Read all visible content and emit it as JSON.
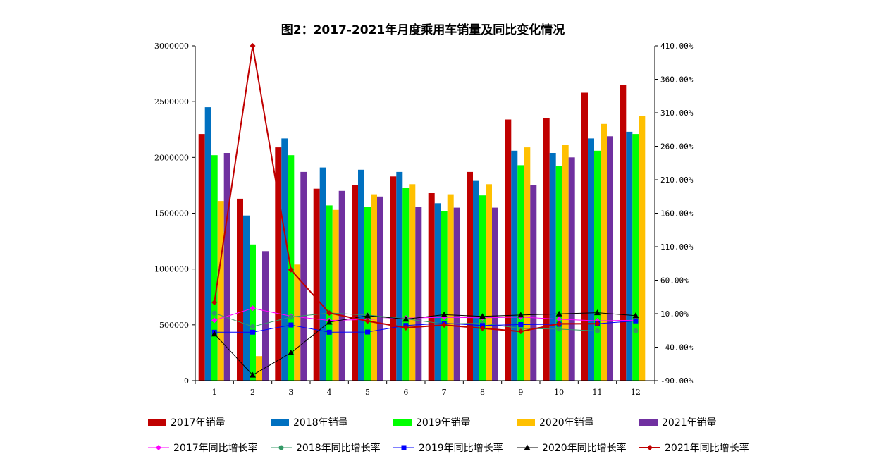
{
  "chart_data": {
    "type": "bar+line",
    "title": "图2：2017-2021年月度乘用车销量及同比变化情况",
    "categories": [
      "1",
      "2",
      "3",
      "4",
      "5",
      "6",
      "7",
      "8",
      "9",
      "10",
      "11",
      "12"
    ],
    "left_axis": {
      "ylim": [
        0,
        3000000
      ],
      "ticks": [
        "0",
        "500000",
        "1000000",
        "1500000",
        "2000000",
        "2500000",
        "3000000"
      ]
    },
    "right_axis": {
      "ylim": [
        -90,
        410
      ],
      "ticks": [
        "-90.00%",
        "-40.00%",
        "10.00%",
        "60.00%",
        "110.00%",
        "160.00%",
        "210.00%",
        "260.00%",
        "310.00%",
        "360.00%",
        "410.00%"
      ]
    },
    "bar_series": [
      {
        "name": "2017年销量",
        "color": "#C00000",
        "values": [
          2210000,
          1630000,
          2090000,
          1720000,
          1750000,
          1830000,
          1680000,
          1870000,
          2340000,
          2350000,
          2580000,
          2650000
        ]
      },
      {
        "name": "2018年销量",
        "color": "#0070C0",
        "values": [
          2450000,
          1480000,
          2170000,
          1910000,
          1890000,
          1870000,
          1590000,
          1790000,
          2060000,
          2040000,
          2170000,
          2230000
        ]
      },
      {
        "name": "2019年销量",
        "color": "#00FF00",
        "values": [
          2020000,
          1220000,
          2020000,
          1570000,
          1560000,
          1730000,
          1520000,
          1660000,
          1930000,
          1920000,
          2060000,
          2210000
        ]
      },
      {
        "name": "2020年销量",
        "color": "#FFC000",
        "values": [
          1610000,
          220000,
          1040000,
          1530000,
          1670000,
          1760000,
          1670000,
          1760000,
          2090000,
          2110000,
          2300000,
          2370000
        ]
      },
      {
        "name": "2021年销量",
        "color": "#7030A0",
        "values": [
          2040000,
          1160000,
          1870000,
          1700000,
          1650000,
          1560000,
          1550000,
          1550000,
          1750000,
          2000000,
          2190000,
          null
        ]
      }
    ],
    "line_series": [
      {
        "name": "2017年同比增长率",
        "color": "#FF00FF",
        "marker": "diamond",
        "values": [
          0.1,
          18.1,
          6.3,
          -0.1,
          1.5,
          3.4,
          4.6,
          3.8,
          4.9,
          1.7,
          -0.6,
          0.2
        ]
      },
      {
        "name": "2018年同比增长率",
        "color": "#339966",
        "marker": "circle",
        "values": [
          10.8,
          -9.4,
          4.9,
          11.1,
          8.0,
          2.2,
          -5.3,
          -4.3,
          -12.0,
          -13.0,
          -15.8,
          -15.8
        ]
      },
      {
        "name": "2019年同比增长率",
        "color": "#0000FF",
        "marker": "square",
        "values": [
          -17.7,
          -17.6,
          -6.9,
          -17.7,
          -17.4,
          -7.6,
          -4.3,
          -7.7,
          -6.3,
          -5.8,
          -5.1,
          -0.8
        ]
      },
      {
        "name": "2020年同比增长率",
        "color": "#000000",
        "marker": "triangle",
        "values": [
          -20.2,
          -81.7,
          -48.4,
          -2.6,
          6.9,
          1.8,
          8.5,
          6.0,
          8.0,
          9.8,
          11.5,
          7.1
        ]
      },
      {
        "name": "2021年同比增长率",
        "color": "#C00000",
        "marker": "diamond",
        "values": [
          26.8,
          410.0,
          75.5,
          11.1,
          -1.1,
          -11.0,
          -6.9,
          -11.8,
          -16.5,
          -5.2,
          -5.0,
          null
        ]
      }
    ]
  }
}
